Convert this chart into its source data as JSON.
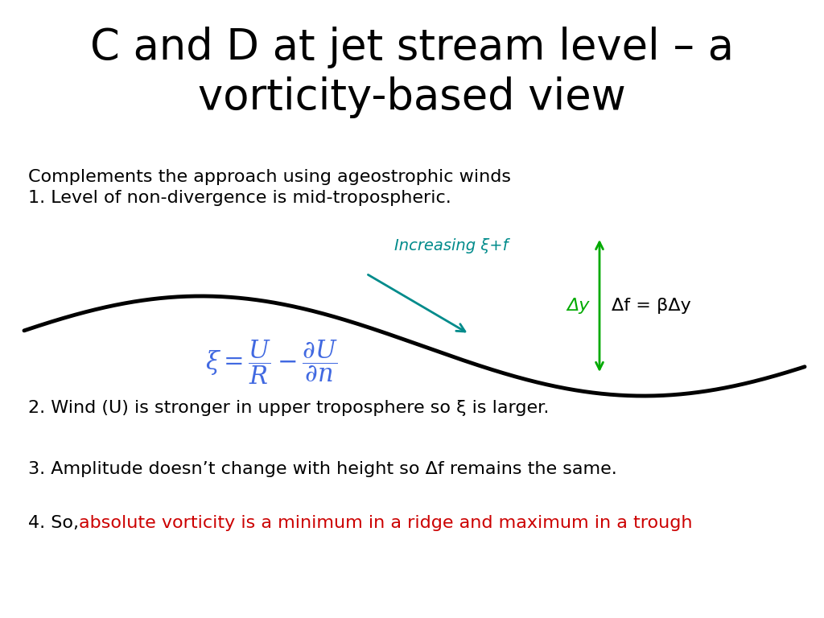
{
  "title": "C and D at jet stream level – a\nvorticity-based view",
  "title_fontsize": 38,
  "title_color": "#000000",
  "bg_color": "#ffffff",
  "line1": "Complements the approach using ageostrophic winds",
  "line2": "1. Level of non-divergence is mid-tropospheric.",
  "point2": "2. Wind (U) is stronger in upper troposphere so ξ is larger.",
  "point3": "3. Amplitude doesn’t change with height so Δf remains the same.",
  "point4_prefix": "4. So, ",
  "point4_red": "absolute vorticity is a minimum in a ridge and maximum in a trough",
  "text_fontsize": 16,
  "increasing_label": "Increasing ξ+f",
  "increasing_color": "#008B8B",
  "dy_label": "Δy",
  "dy_color": "#00AA00",
  "df_label": "Δf = βΔy",
  "df_color": "#000000",
  "formula_color": "#4169E1",
  "red_color": "#CC0000",
  "arrow_color": "#008B8B",
  "green_arrow_color": "#00AA00"
}
